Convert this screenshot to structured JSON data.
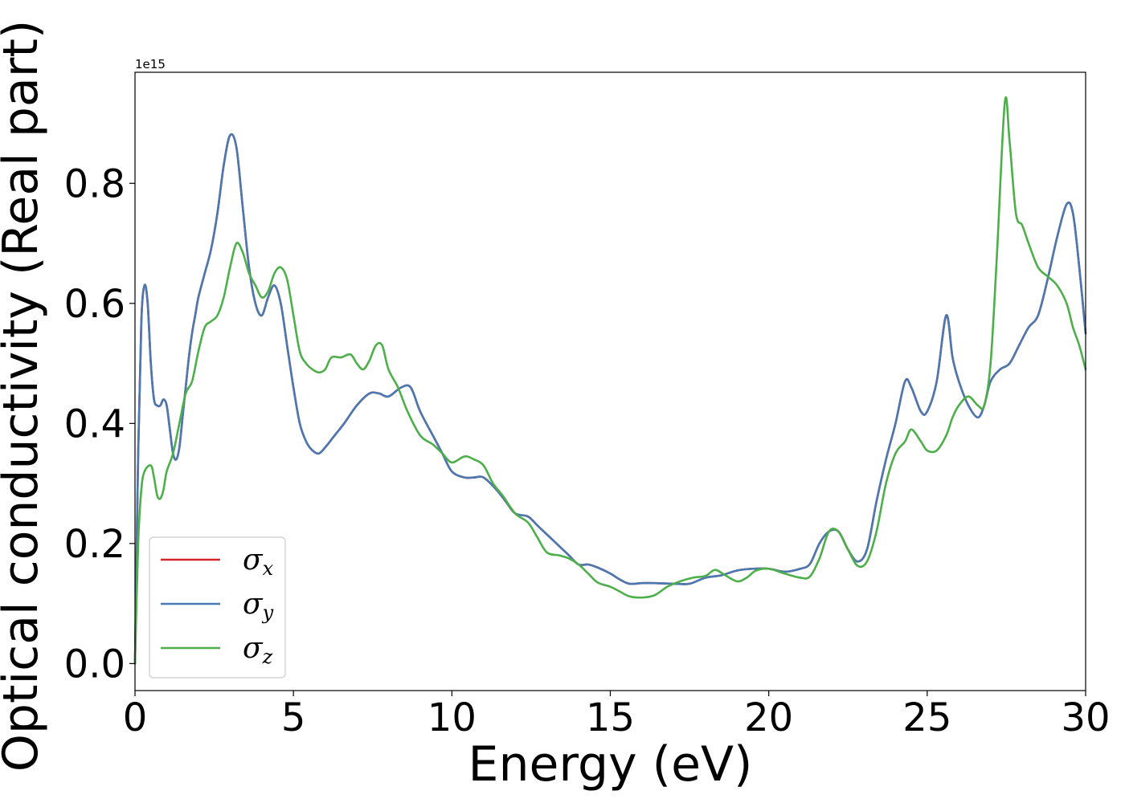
{
  "chart_data": {
    "type": "line",
    "xlabel": "Energy (eV)",
    "ylabel": "Optical conductivity (Real part)",
    "y_offset_label": "1e15",
    "xlim": [
      0,
      30
    ],
    "ylim": [
      -0.045,
      0.985
    ],
    "grid": false,
    "legend_position": "lower-left",
    "x_ticks": [
      0,
      5,
      10,
      15,
      20,
      25,
      30
    ],
    "x_tick_labels": [
      "0",
      "5",
      "10",
      "15",
      "20",
      "25",
      "30"
    ],
    "y_ticks": [
      0.0,
      0.2,
      0.4,
      0.6,
      0.8
    ],
    "y_tick_labels": [
      "0.0",
      "0.2",
      "0.4",
      "0.6",
      "0.8"
    ],
    "series": [
      {
        "name": "σx",
        "symbol": "σ",
        "subscript": "x",
        "color": "#d62728",
        "x": [
          0,
          0.1,
          0.2,
          0.3,
          0.4,
          0.5,
          0.6,
          0.7,
          0.8,
          0.9,
          1.0,
          1.1,
          1.2,
          1.3,
          1.4,
          1.5,
          1.6,
          1.7,
          1.8,
          1.9,
          2.0,
          2.2,
          2.4,
          2.6,
          2.8,
          3.0,
          3.2,
          3.4,
          3.6,
          3.8,
          4.0,
          4.2,
          4.4,
          4.6,
          4.8,
          5.0,
          5.2,
          5.4,
          5.6,
          5.8,
          6.0,
          6.3,
          6.6,
          7.0,
          7.4,
          7.7,
          8.0,
          8.4,
          8.7,
          9.0,
          9.4,
          9.7,
          10.0,
          10.4,
          10.7,
          11.0,
          11.4,
          11.7,
          12.0,
          12.4,
          12.7,
          13.0,
          13.4,
          13.7,
          14.0,
          14.3,
          14.6,
          15.0,
          15.3,
          15.6,
          16.0,
          16.4,
          17.0,
          17.5,
          18.0,
          18.5,
          19.0,
          19.5,
          20.0,
          20.5,
          21.0,
          21.3,
          21.6,
          21.9,
          22.2,
          22.5,
          22.8,
          23.1,
          23.4,
          23.7,
          24.0,
          24.3,
          24.5,
          24.8,
          25.0,
          25.3,
          25.6,
          25.8,
          26.0,
          26.3,
          26.6,
          26.8,
          27.0,
          27.3,
          27.6,
          27.9,
          28.2,
          28.5,
          28.8,
          29.1,
          29.4,
          29.6,
          29.8,
          30.0
        ],
        "values": [
          0,
          0.35,
          0.57,
          0.63,
          0.6,
          0.5,
          0.44,
          0.43,
          0.43,
          0.44,
          0.43,
          0.39,
          0.35,
          0.34,
          0.36,
          0.41,
          0.46,
          0.51,
          0.55,
          0.58,
          0.61,
          0.65,
          0.69,
          0.75,
          0.83,
          0.88,
          0.86,
          0.76,
          0.66,
          0.6,
          0.58,
          0.61,
          0.63,
          0.6,
          0.53,
          0.46,
          0.4,
          0.37,
          0.355,
          0.35,
          0.36,
          0.38,
          0.4,
          0.43,
          0.45,
          0.45,
          0.445,
          0.46,
          0.46,
          0.42,
          0.38,
          0.35,
          0.32,
          0.31,
          0.31,
          0.31,
          0.29,
          0.27,
          0.25,
          0.245,
          0.23,
          0.215,
          0.195,
          0.18,
          0.165,
          0.165,
          0.16,
          0.15,
          0.14,
          0.133,
          0.134,
          0.134,
          0.133,
          0.133,
          0.143,
          0.147,
          0.155,
          0.158,
          0.158,
          0.153,
          0.158,
          0.166,
          0.2,
          0.22,
          0.22,
          0.19,
          0.17,
          0.19,
          0.27,
          0.34,
          0.4,
          0.47,
          0.46,
          0.42,
          0.42,
          0.47,
          0.58,
          0.51,
          0.47,
          0.43,
          0.41,
          0.43,
          0.47,
          0.49,
          0.5,
          0.53,
          0.56,
          0.58,
          0.64,
          0.71,
          0.765,
          0.75,
          0.66,
          0.55
        ]
      },
      {
        "name": "σy",
        "symbol": "σ",
        "subscript": "y",
        "color": "#4a78b3",
        "x": [
          0,
          0.1,
          0.2,
          0.3,
          0.4,
          0.5,
          0.6,
          0.7,
          0.8,
          0.9,
          1.0,
          1.1,
          1.2,
          1.3,
          1.4,
          1.5,
          1.6,
          1.7,
          1.8,
          1.9,
          2.0,
          2.2,
          2.4,
          2.6,
          2.8,
          3.0,
          3.2,
          3.4,
          3.6,
          3.8,
          4.0,
          4.2,
          4.4,
          4.6,
          4.8,
          5.0,
          5.2,
          5.4,
          5.6,
          5.8,
          6.0,
          6.3,
          6.6,
          7.0,
          7.4,
          7.7,
          8.0,
          8.4,
          8.7,
          9.0,
          9.4,
          9.7,
          10.0,
          10.4,
          10.7,
          11.0,
          11.4,
          11.7,
          12.0,
          12.4,
          12.7,
          13.0,
          13.4,
          13.7,
          14.0,
          14.3,
          14.6,
          15.0,
          15.3,
          15.6,
          16.0,
          16.4,
          17.0,
          17.5,
          18.0,
          18.5,
          19.0,
          19.5,
          20.0,
          20.5,
          21.0,
          21.3,
          21.6,
          21.9,
          22.2,
          22.5,
          22.8,
          23.1,
          23.4,
          23.7,
          24.0,
          24.3,
          24.5,
          24.8,
          25.0,
          25.3,
          25.6,
          25.8,
          26.0,
          26.3,
          26.6,
          26.8,
          27.0,
          27.3,
          27.6,
          27.9,
          28.2,
          28.5,
          28.8,
          29.1,
          29.4,
          29.6,
          29.8,
          30.0
        ],
        "values": [
          0,
          0.35,
          0.57,
          0.63,
          0.6,
          0.5,
          0.44,
          0.43,
          0.43,
          0.44,
          0.43,
          0.39,
          0.35,
          0.34,
          0.36,
          0.41,
          0.46,
          0.51,
          0.55,
          0.58,
          0.61,
          0.65,
          0.69,
          0.75,
          0.83,
          0.88,
          0.86,
          0.76,
          0.66,
          0.6,
          0.58,
          0.61,
          0.63,
          0.6,
          0.53,
          0.46,
          0.4,
          0.37,
          0.355,
          0.35,
          0.36,
          0.38,
          0.4,
          0.43,
          0.45,
          0.45,
          0.445,
          0.46,
          0.46,
          0.42,
          0.38,
          0.35,
          0.32,
          0.31,
          0.31,
          0.31,
          0.29,
          0.27,
          0.25,
          0.245,
          0.23,
          0.215,
          0.195,
          0.18,
          0.165,
          0.165,
          0.16,
          0.15,
          0.14,
          0.133,
          0.134,
          0.134,
          0.133,
          0.133,
          0.143,
          0.147,
          0.155,
          0.158,
          0.158,
          0.153,
          0.158,
          0.166,
          0.2,
          0.22,
          0.22,
          0.19,
          0.17,
          0.19,
          0.27,
          0.34,
          0.4,
          0.47,
          0.46,
          0.42,
          0.42,
          0.47,
          0.58,
          0.51,
          0.47,
          0.43,
          0.41,
          0.43,
          0.47,
          0.49,
          0.5,
          0.53,
          0.56,
          0.58,
          0.64,
          0.71,
          0.765,
          0.75,
          0.66,
          0.55
        ]
      },
      {
        "name": "σz",
        "symbol": "σ",
        "subscript": "z",
        "color": "#4daf4a",
        "x": [
          0,
          0.1,
          0.2,
          0.3,
          0.5,
          0.6,
          0.7,
          0.8,
          0.9,
          1.0,
          1.2,
          1.4,
          1.6,
          1.8,
          2.0,
          2.2,
          2.4,
          2.6,
          2.8,
          3.0,
          3.2,
          3.4,
          3.6,
          3.8,
          4.0,
          4.2,
          4.4,
          4.6,
          4.8,
          5.0,
          5.2,
          5.4,
          5.6,
          5.8,
          6.0,
          6.2,
          6.5,
          6.8,
          7.0,
          7.2,
          7.4,
          7.6,
          7.8,
          8.0,
          8.3,
          8.6,
          9.0,
          9.4,
          9.7,
          10.0,
          10.4,
          10.7,
          11.0,
          11.3,
          11.6,
          12.0,
          12.4,
          12.7,
          13.0,
          13.4,
          13.7,
          14.0,
          14.3,
          14.6,
          15.0,
          15.3,
          15.6,
          16.0,
          16.4,
          16.8,
          17.2,
          17.6,
          18.0,
          18.3,
          18.6,
          19.0,
          19.3,
          19.6,
          20.0,
          20.5,
          21.0,
          21.3,
          21.6,
          21.9,
          22.2,
          22.5,
          22.8,
          23.1,
          23.4,
          23.7,
          24.0,
          24.3,
          24.5,
          24.8,
          25.0,
          25.3,
          25.6,
          25.8,
          26.0,
          26.3,
          26.6,
          26.8,
          27.0,
          27.2,
          27.45,
          27.6,
          27.8,
          28.0,
          28.2,
          28.5,
          28.8,
          29.1,
          29.4,
          29.6,
          29.8,
          30.0
        ],
        "values": [
          0,
          0.2,
          0.29,
          0.32,
          0.33,
          0.31,
          0.28,
          0.275,
          0.29,
          0.32,
          0.35,
          0.4,
          0.45,
          0.47,
          0.52,
          0.56,
          0.57,
          0.58,
          0.61,
          0.66,
          0.7,
          0.685,
          0.65,
          0.63,
          0.61,
          0.62,
          0.65,
          0.66,
          0.64,
          0.58,
          0.52,
          0.5,
          0.49,
          0.485,
          0.49,
          0.51,
          0.51,
          0.515,
          0.5,
          0.49,
          0.505,
          0.53,
          0.53,
          0.49,
          0.46,
          0.42,
          0.38,
          0.365,
          0.35,
          0.335,
          0.345,
          0.34,
          0.33,
          0.3,
          0.28,
          0.25,
          0.235,
          0.21,
          0.185,
          0.18,
          0.175,
          0.165,
          0.15,
          0.135,
          0.128,
          0.12,
          0.112,
          0.11,
          0.114,
          0.128,
          0.137,
          0.143,
          0.146,
          0.156,
          0.148,
          0.137,
          0.143,
          0.155,
          0.158,
          0.15,
          0.143,
          0.145,
          0.175,
          0.22,
          0.22,
          0.19,
          0.163,
          0.17,
          0.22,
          0.3,
          0.35,
          0.37,
          0.39,
          0.37,
          0.355,
          0.355,
          0.38,
          0.41,
          0.43,
          0.445,
          0.43,
          0.43,
          0.5,
          0.68,
          0.935,
          0.87,
          0.75,
          0.73,
          0.7,
          0.66,
          0.645,
          0.63,
          0.6,
          0.56,
          0.53,
          0.49
        ]
      }
    ]
  }
}
